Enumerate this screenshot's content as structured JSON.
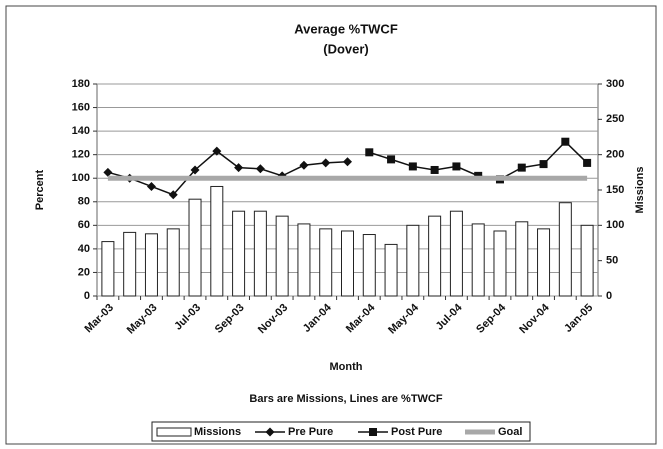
{
  "chart_data": {
    "type": "bar_line",
    "title": "Average %TWCF",
    "subtitle": "(Dover)",
    "x_label": "Month",
    "y_label": "Percent",
    "y2_label": "Missions",
    "annotation": "Bars are Missions, Lines are %TWCF",
    "categories": [
      "Mar-03",
      null,
      "May-03",
      null,
      "Jul-03",
      null,
      "Sep-03",
      null,
      "Nov-03",
      null,
      "Jan-04",
      null,
      "Mar-04",
      null,
      "May-04",
      null,
      "Jul-04",
      null,
      "Sep-04",
      null,
      "Nov-04",
      null,
      "Jan-05"
    ],
    "ylim": [
      0,
      180
    ],
    "yticks": [
      0,
      20,
      40,
      60,
      80,
      100,
      120,
      140,
      160,
      180
    ],
    "y2lim": [
      0,
      300
    ],
    "y2ticks": [
      0,
      50,
      100,
      150,
      200,
      250,
      300
    ],
    "grid": true,
    "series": [
      {
        "name": "Missions",
        "type": "bar",
        "axis": "y2",
        "color": "#ffffff",
        "values": [
          77,
          90,
          88,
          95,
          137,
          155,
          120,
          120,
          113,
          102,
          95,
          92,
          87,
          73,
          100,
          113,
          120,
          102,
          92,
          105,
          95,
          132,
          100
        ]
      },
      {
        "name": "Pre Pure",
        "type": "line",
        "marker": "diamond",
        "color": "#111111",
        "values": [
          105,
          100,
          93,
          86,
          107,
          123,
          109,
          108,
          102,
          111,
          113,
          114,
          null,
          null,
          null,
          null,
          null,
          null,
          null,
          null,
          null,
          null,
          null
        ]
      },
      {
        "name": "Post Pure",
        "type": "line",
        "marker": "square",
        "color": "#111111",
        "values": [
          null,
          null,
          null,
          null,
          null,
          null,
          null,
          null,
          null,
          null,
          null,
          null,
          122,
          116,
          110,
          107,
          110,
          102,
          99,
          109,
          112,
          131,
          113
        ]
      },
      {
        "name": "Goal",
        "type": "line",
        "marker": "none",
        "color": "#a8a8a8",
        "values": [
          100,
          100,
          100,
          100,
          100,
          100,
          100,
          100,
          100,
          100,
          100,
          100,
          100,
          100,
          100,
          100,
          100,
          100,
          100,
          100,
          100,
          100,
          100
        ]
      }
    ]
  }
}
